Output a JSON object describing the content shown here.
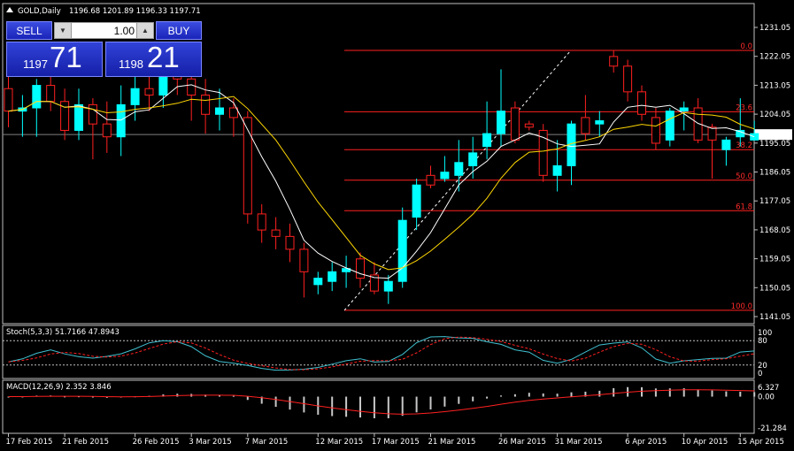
{
  "header": {
    "title": "GOLD,Daily",
    "ohlc": "1196.68 1201.89 1196.33 1197.71"
  },
  "trade": {
    "sell_label": "SELL",
    "buy_label": "BUY",
    "lot": "1.00",
    "sell_small": "1197",
    "sell_big": "71",
    "buy_small": "1198",
    "buy_big": "21"
  },
  "price_axis": {
    "labels": [
      "1231.05",
      "1222.05",
      "1213.05",
      "1204.05",
      "1195.05",
      "1186.05",
      "1177.05",
      "1168.05",
      "1159.05",
      "1150.05",
      "1141.05"
    ],
    "current": "1197.71"
  },
  "time_axis": [
    "17 Feb 2015",
    "21 Feb 2015",
    "26 Feb 2015",
    "3 Mar 2015",
    "7 Mar 2015",
    "12 Mar 2015",
    "17 Mar 2015",
    "21 Mar 2015",
    "26 Mar 2015",
    "31 Mar 2015",
    "6 Apr 2015",
    "10 Apr 2015",
    "15 Apr 2015"
  ],
  "fib_labels": [
    "0.0",
    "23.6",
    "38.2",
    "50.0",
    "61.8",
    "100.0"
  ],
  "stoch": {
    "label": "Stoch(5,3,3) 51.7166 47.8943",
    "levels": [
      "100",
      "80",
      "20",
      "0"
    ]
  },
  "macd": {
    "label": "MACD(12,26,9) 2.352 3.846",
    "levels": [
      "6.327",
      "0.00",
      "-21.284"
    ]
  },
  "colors": {
    "up": "#00ffff",
    "down": "#ff2020",
    "ma_fast": "#ffffff",
    "ma_slow": "#ffd700",
    "fib": "#ff2020",
    "signal": "#ff2020",
    "stoch_main": "#40c0d0"
  },
  "chart_data": {
    "type": "candlestick",
    "dates": [
      "17 Feb 2015",
      "21 Feb 2015",
      "26 Feb 2015",
      "3 Mar 2015",
      "7 Mar 2015",
      "12 Mar 2015",
      "17 Mar 2015",
      "21 Mar 2015",
      "26 Mar 2015",
      "31 Mar 2015",
      "6 Apr 2015",
      "10 Apr 2015",
      "15 Apr 2015"
    ],
    "ylim": [
      1141.05,
      1231.05
    ],
    "candles": [
      [
        1212,
        1218,
        1200,
        1205
      ],
      [
        1205,
        1210,
        1197,
        1206
      ],
      [
        1206,
        1215,
        1197,
        1213
      ],
      [
        1213,
        1216,
        1205,
        1208
      ],
      [
        1208,
        1212,
        1196,
        1199
      ],
      [
        1199,
        1212,
        1196,
        1207
      ],
      [
        1207,
        1209,
        1190,
        1201
      ],
      [
        1201,
        1208,
        1192,
        1197
      ],
      [
        1197,
        1213,
        1191,
        1207
      ],
      [
        1207,
        1218,
        1202,
        1212
      ],
      [
        1212,
        1218,
        1205,
        1210
      ],
      [
        1210,
        1222,
        1206,
        1219
      ],
      [
        1219,
        1225,
        1210,
        1215
      ],
      [
        1215,
        1218,
        1202,
        1210
      ],
      [
        1210,
        1215,
        1198,
        1204
      ],
      [
        1204,
        1212,
        1199,
        1206
      ],
      [
        1206,
        1209,
        1197,
        1203
      ],
      [
        1203,
        1205,
        1170,
        1173
      ],
      [
        1173,
        1176,
        1164,
        1168
      ],
      [
        1168,
        1172,
        1162,
        1166
      ],
      [
        1166,
        1170,
        1158,
        1162
      ],
      [
        1162,
        1164,
        1147,
        1155
      ],
      [
        1151,
        1155,
        1148,
        1153
      ],
      [
        1152,
        1158,
        1149,
        1155
      ],
      [
        1155,
        1160,
        1150,
        1156
      ],
      [
        1159,
        1161,
        1150,
        1153
      ],
      [
        1154,
        1158,
        1148,
        1149
      ],
      [
        1149,
        1154,
        1145,
        1152
      ],
      [
        1152,
        1175,
        1150,
        1171
      ],
      [
        1172,
        1184,
        1168,
        1182
      ],
      [
        1185,
        1188,
        1181,
        1182
      ],
      [
        1184,
        1191,
        1183,
        1186
      ],
      [
        1185,
        1196,
        1180,
        1189
      ],
      [
        1188,
        1197,
        1184,
        1192
      ],
      [
        1194,
        1208,
        1190,
        1198
      ],
      [
        1198,
        1218,
        1194,
        1205
      ],
      [
        1206,
        1208,
        1195,
        1196
      ],
      [
        1201,
        1202,
        1199,
        1200
      ],
      [
        1199,
        1201,
        1183,
        1185
      ],
      [
        1185,
        1196,
        1180,
        1188
      ],
      [
        1188,
        1202,
        1182,
        1201
      ],
      [
        1203,
        1210,
        1196,
        1198
      ],
      [
        1201,
        1205,
        1197,
        1202
      ],
      [
        1222,
        1224,
        1217,
        1219
      ],
      [
        1219,
        1221,
        1208,
        1211
      ],
      [
        1211,
        1213,
        1202,
        1204
      ],
      [
        1203,
        1206,
        1193,
        1195
      ],
      [
        1196,
        1206,
        1194,
        1205
      ],
      [
        1205,
        1208,
        1199,
        1206
      ],
      [
        1206,
        1209,
        1195,
        1196
      ],
      [
        1200,
        1201,
        1184,
        1196
      ],
      [
        1193,
        1197,
        1188,
        1196
      ],
      [
        1197,
        1209,
        1194,
        1199
      ],
      [
        1196,
        1202,
        1196,
        1198
      ]
    ],
    "fib_levels": [
      {
        "label": "0.0",
        "price": 1223.9
      },
      {
        "label": "23.6",
        "price": 1204.8
      },
      {
        "label": "38.2",
        "price": 1193.0
      },
      {
        "label": "50.0",
        "price": 1183.5
      },
      {
        "label": "61.8",
        "price": 1174.0
      },
      {
        "label": "100.0",
        "price": 1143.0
      }
    ],
    "current_price": 1197.71,
    "stoch": {
      "range": [
        0,
        100
      ],
      "levels": [
        100,
        80,
        20,
        0
      ]
    },
    "macd": {
      "range": [
        -21.284,
        6.327
      ]
    }
  }
}
